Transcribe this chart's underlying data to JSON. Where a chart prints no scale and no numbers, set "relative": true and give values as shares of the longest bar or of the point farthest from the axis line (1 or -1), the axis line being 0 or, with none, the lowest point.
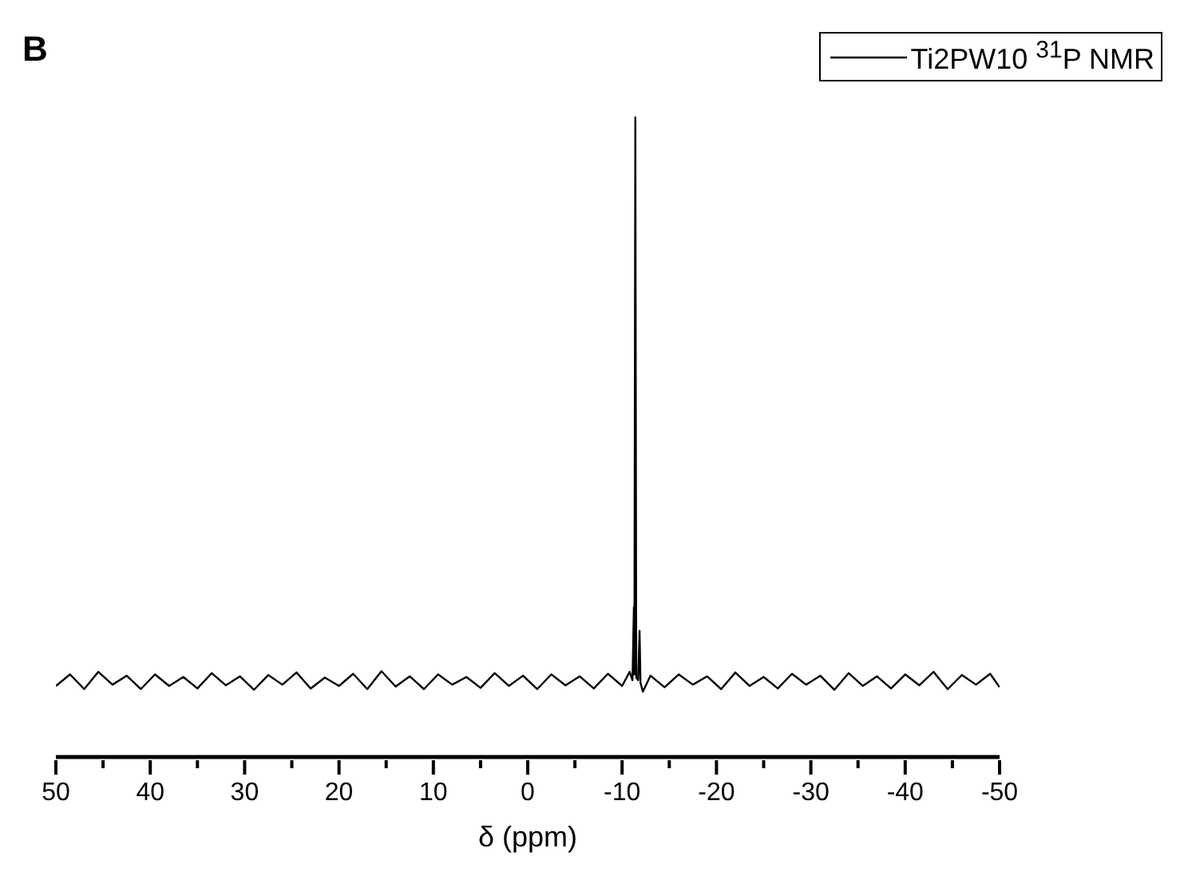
{
  "chart_data": {
    "type": "line",
    "title": "B",
    "xlabel": "δ (ppm)",
    "relative": true,
    "legend": "top right",
    "xlim": [
      50,
      -50
    ],
    "xticks": [
      50,
      {
        "value": 45,
        "label": null
      },
      40,
      {
        "value": 35,
        "label": null
      },
      30,
      {
        "value": 25,
        "label": null
      },
      20,
      {
        "value": 15,
        "label": null
      },
      10,
      {
        "value": 5,
        "label": null
      },
      0,
      {
        "value": -5,
        "label": null
      },
      -10,
      {
        "value": -15,
        "label": null
      },
      -20,
      {
        "value": -25,
        "label": null
      },
      -30,
      {
        "value": -35,
        "label": null
      },
      -40,
      {
        "value": -45,
        "label": null
      },
      -50
    ],
    "x": [
      50,
      48.5,
      47,
      45.5,
      44,
      42.5,
      41,
      39.5,
      38,
      36.5,
      35,
      33.5,
      32,
      30.5,
      29,
      27.5,
      26,
      24.5,
      23,
      21.5,
      20,
      18.5,
      17,
      15.5,
      14,
      12.5,
      11,
      9.5,
      8,
      6.5,
      5,
      3.5,
      2,
      0.5,
      -1,
      -2.5,
      -4,
      -5.5,
      -7,
      -8.5,
      -10,
      -10.8,
      -11.1,
      -11.25,
      -11.3,
      -11.4,
      -11.5,
      -11.7,
      -11.85,
      -11.95,
      -12.2,
      -13,
      -14.5,
      -16,
      -17.5,
      -19,
      -20.5,
      -22,
      -23.5,
      -25,
      -26.5,
      -28,
      -29.5,
      -31,
      -32.5,
      -34,
      -35.5,
      -37,
      -38.5,
      -40,
      -41.5,
      -43,
      -44.5,
      -46,
      -47.5,
      -49,
      -50
    ],
    "series": [
      {
        "name": "Ti2PW10 $^{31}$P NMR",
        "color": "#000000",
        "values": [
          0.111,
          0.129,
          0.106,
          0.133,
          0.113,
          0.127,
          0.106,
          0.129,
          0.111,
          0.125,
          0.107,
          0.131,
          0.112,
          0.126,
          0.105,
          0.128,
          0.113,
          0.132,
          0.107,
          0.124,
          0.111,
          0.13,
          0.106,
          0.134,
          0.11,
          0.126,
          0.106,
          0.129,
          0.113,
          0.125,
          0.108,
          0.131,
          0.111,
          0.127,
          0.106,
          0.129,
          0.112,
          0.126,
          0.107,
          0.13,
          0.111,
          0.133,
          0.12,
          0.234,
          0.129,
          1,
          0.124,
          0.12,
          0.197,
          0.116,
          0.102,
          0.127,
          0.109,
          0.129,
          0.113,
          0.126,
          0.106,
          0.132,
          0.111,
          0.125,
          0.107,
          0.13,
          0.113,
          0.127,
          0.105,
          0.131,
          0.111,
          0.126,
          0.107,
          0.129,
          0.112,
          0.133,
          0.106,
          0.128,
          0.113,
          0.13,
          0.109
        ]
      }
    ]
  }
}
